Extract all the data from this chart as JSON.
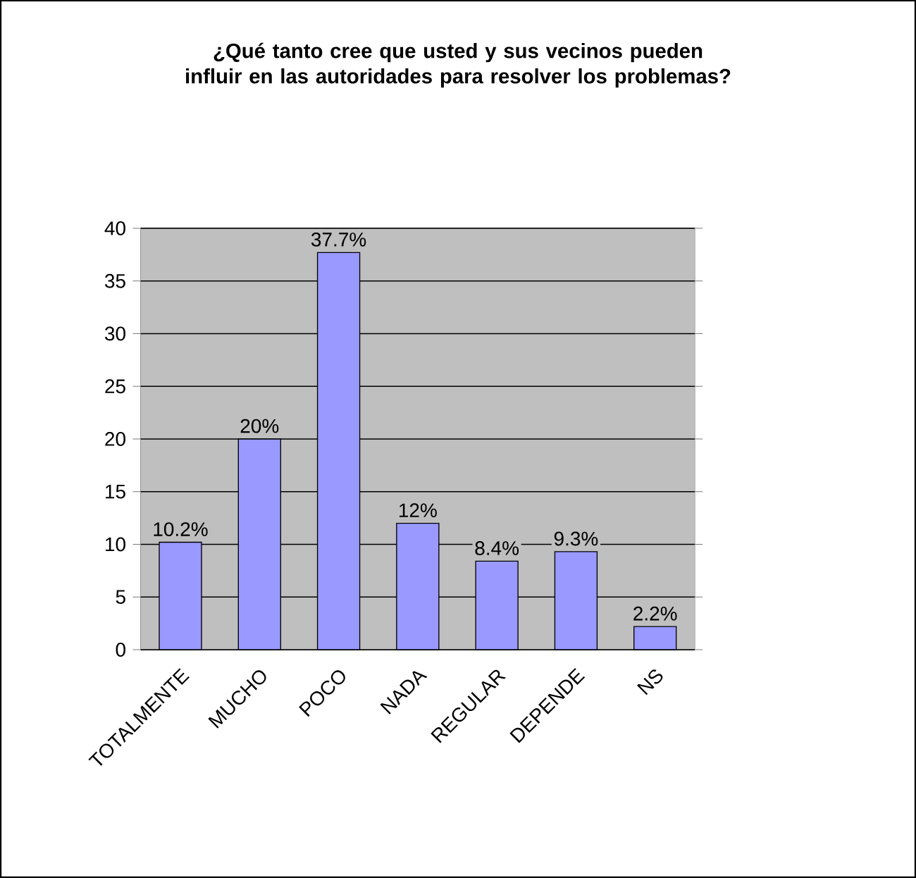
{
  "chart_data": {
    "type": "bar",
    "title": "¿Qué tanto cree que usted y sus vecinos pueden influir en las autoridades para resolver los problemas?",
    "categories": [
      "TOTALMENTE",
      "MUCHO",
      "POCO",
      "NADA",
      "REGULAR",
      "DEPENDE",
      "NS"
    ],
    "values": [
      10.2,
      20,
      37.7,
      12,
      8.4,
      9.3,
      2.2
    ],
    "value_labels": [
      "10.2%",
      "20%",
      "37.7%",
      "12%",
      "8.4%",
      "9.3%",
      "2.2%"
    ],
    "color": "#9999ff",
    "ylim": [
      0,
      40
    ],
    "yticks": [
      0,
      5,
      10,
      15,
      20,
      25,
      30,
      35,
      40
    ],
    "grid": "y"
  }
}
